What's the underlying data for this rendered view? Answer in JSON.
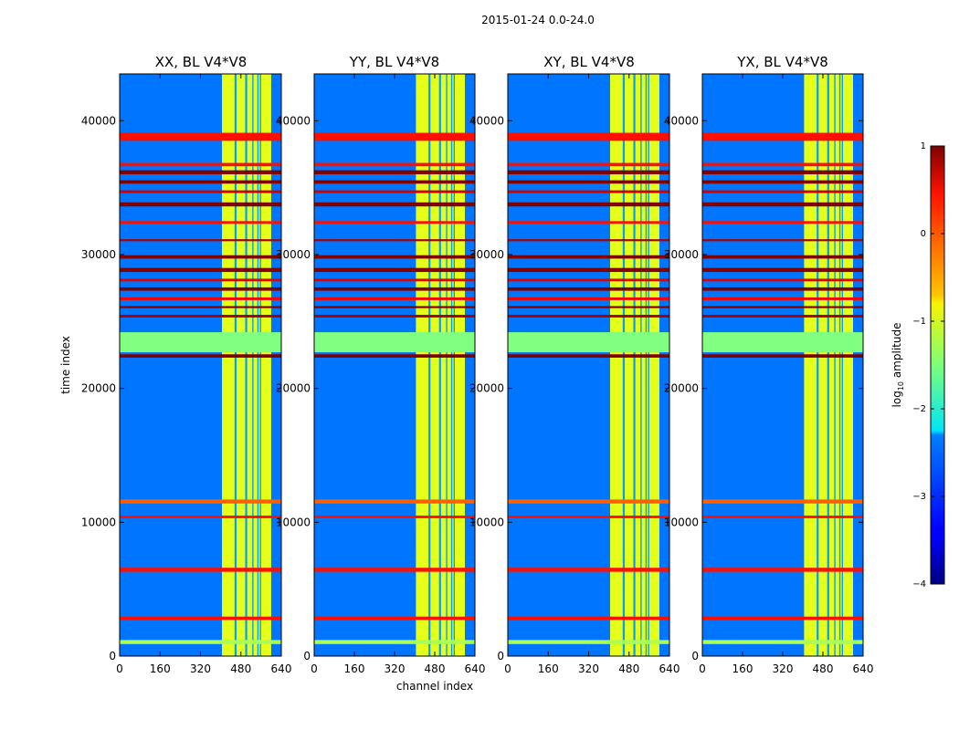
{
  "chart_data": {
    "type": "heatmap",
    "suptitle": "2015-01-24 0.0-24.0",
    "xlabel": "channel index",
    "ylabel": "time index",
    "colorbar_label": "log",
    "colorbar_label_sub": "10",
    "colorbar_label_rest": " amplitude",
    "colorbar": {
      "ticks": [
        "1",
        "0",
        "−1",
        "−2",
        "−3",
        "−4"
      ],
      "range": [
        -4,
        1
      ],
      "colormap": "jet"
    },
    "x_ticks": [
      "0",
      "160",
      "320",
      "480",
      "640"
    ],
    "y_ticks": [
      "0",
      "10000",
      "20000",
      "30000",
      "40000"
    ],
    "xlim": [
      0,
      640
    ],
    "ylim": [
      0,
      43500
    ],
    "panels": [
      {
        "title": "XX, BL V4*V8",
        "y_tick_labels": [
          "0",
          "10000",
          "20000",
          "30000",
          "40000"
        ]
      },
      {
        "title": "YY, BL V4*V8",
        "y_tick_labels": [
          "0",
          "10000",
          "20000",
          "30000",
          "40000"
        ]
      },
      {
        "title": "XY, BL V4*V8",
        "y_tick_labels": [
          "0",
          "10000",
          "20000",
          "30000",
          "40000"
        ]
      },
      {
        "title": "YX, BL V4*V8",
        "y_tick_labels": [
          "0",
          "10000",
          "20000",
          "30000",
          "40000"
        ]
      }
    ],
    "features": {
      "background_level": -2.8,
      "bright_channel_band": [
        405,
        600
      ],
      "bright_band_level": -1.0,
      "channel_gaps": [
        [
          455,
          463
        ],
        [
          497,
          505
        ],
        [
          525,
          530
        ],
        [
          545,
          550
        ],
        [
          555,
          560
        ]
      ],
      "flag_band_time": [
        22700,
        24200
      ],
      "flag_band_level": -1.5,
      "broadband_rfi": [
        {
          "y": 38500,
          "h": 600,
          "level": 0.3
        },
        {
          "y": 36600,
          "h": 250,
          "level": 0.3
        },
        {
          "y": 36000,
          "h": 300,
          "level": 1.0
        },
        {
          "y": 35300,
          "h": 250,
          "level": 1.0
        },
        {
          "y": 34600,
          "h": 200,
          "level": 0.6
        },
        {
          "y": 33600,
          "h": 300,
          "level": 1.0
        },
        {
          "y": 32300,
          "h": 200,
          "level": 0.3
        },
        {
          "y": 31000,
          "h": 150,
          "level": 0.8
        },
        {
          "y": 29700,
          "h": 250,
          "level": 1.0
        },
        {
          "y": 28700,
          "h": 300,
          "level": 1.0
        },
        {
          "y": 28000,
          "h": 200,
          "level": 0.5
        },
        {
          "y": 27300,
          "h": 250,
          "level": 1.0
        },
        {
          "y": 26600,
          "h": 200,
          "level": 0.4
        },
        {
          "y": 26000,
          "h": 150,
          "level": 1.0
        },
        {
          "y": 25300,
          "h": 200,
          "level": 0.8
        },
        {
          "y": 22300,
          "h": 250,
          "level": 1.0
        },
        {
          "y": 11400,
          "h": 300,
          "level": -0.1
        },
        {
          "y": 10300,
          "h": 200,
          "level": 0.3
        },
        {
          "y": 6300,
          "h": 300,
          "level": 0.3
        },
        {
          "y": 2700,
          "h": 250,
          "level": 0.3
        },
        {
          "y": 900,
          "h": 300,
          "level": -1.3
        }
      ]
    }
  }
}
